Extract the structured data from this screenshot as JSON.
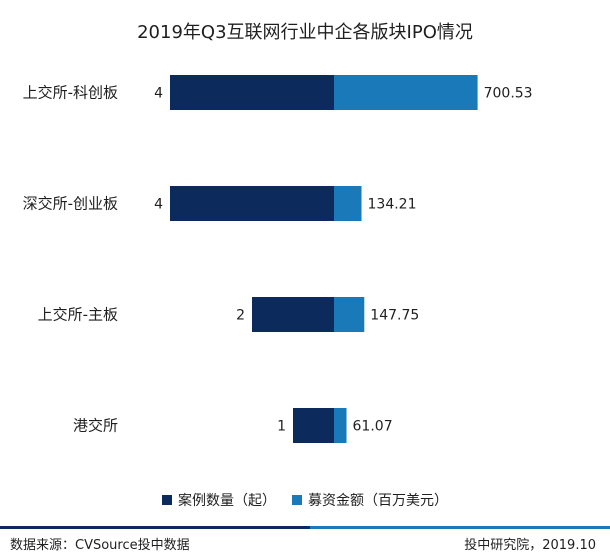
{
  "chart_data": {
    "type": "bar",
    "orientation": "horizontal-diverging",
    "title": "2019年Q3互联网行业中企各版块IPO情况",
    "categories": [
      "上交所-科创板",
      "深交所-创业板",
      "上交所-主板",
      "港交所"
    ],
    "series": [
      {
        "name": "案例数量（起）",
        "values": [
          4,
          4,
          2,
          1
        ],
        "labels": [
          "4",
          "4",
          "2",
          "1"
        ],
        "color": "#0c2b5c",
        "direction": "left"
      },
      {
        "name": "募资金额（百万美元）",
        "values": [
          700.53,
          134.21,
          147.75,
          61.07
        ],
        "labels": [
          "700.53",
          "134.21",
          "147.75",
          "61.07"
        ],
        "color": "#1a7ab9",
        "direction": "right"
      }
    ],
    "legend_position": "bottom",
    "grid": false
  },
  "footer": {
    "source": "数据来源：CVSource投中数据",
    "credit": "投中研究院，2019.10",
    "rule_left_color": "#0c2b5c",
    "rule_right_color": "#1a7ab9"
  }
}
